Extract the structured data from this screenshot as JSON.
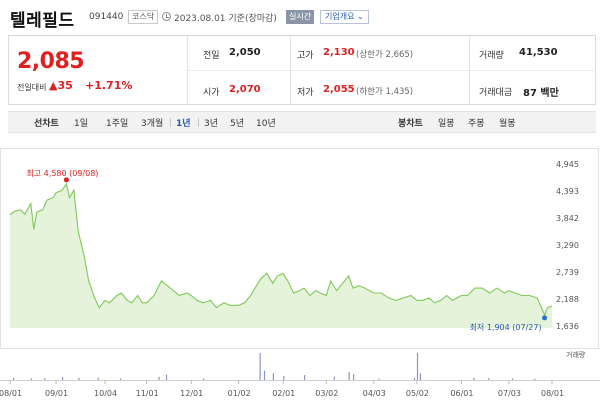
{
  "header": {
    "name": "텔레필드",
    "code": "091440",
    "market": "코스닥",
    "date": "2023.08.01",
    "basis": "기준(장마감)",
    "realtime_label": "실시간",
    "company_label": "기업개요 ⌄"
  },
  "quote": {
    "price": "2,085",
    "change_label": "전일대비",
    "change_arrow": "▲",
    "change": "35",
    "change_pct": "+1.71%",
    "prev_close_label": "전일",
    "prev_close": "2,050",
    "open_label": "시가",
    "open": "2,070",
    "high_label": "고가",
    "high": "2,130",
    "upper_limit_text": "(상한가 2,665)",
    "low_label": "저가",
    "low": "2,055",
    "lower_limit_text": "(하한가 1,435)",
    "volume_label": "거래량",
    "volume": "41,530",
    "amount_label": "거래대금",
    "amount": "87",
    "amount_unit": "백만"
  },
  "tabs": {
    "line_label": "선차트",
    "periods": [
      "1일",
      "1주일",
      "3개월",
      "1년",
      "3년",
      "5년",
      "10년"
    ],
    "active_period": "1년",
    "candle_label": "봉차트",
    "candle_types": [
      "일봉",
      "주봉",
      "월봉"
    ]
  },
  "colors": {
    "up": "#e02020",
    "down": "#2a5bb3",
    "line": "#7fc85a",
    "area": "#e4f3da",
    "volume": "#8a94c4"
  },
  "chart_data": {
    "type": "area",
    "y_ticks": [
      "4,945",
      "4,393",
      "3,842",
      "3,290",
      "2,739",
      "2,188",
      "1,636"
    ],
    "ylim": [
      1636,
      4945
    ],
    "x_ticks": [
      "08/01",
      "09/01",
      "10/04",
      "11/01",
      "12/01",
      "01/02",
      "02/01",
      "03/02",
      "04/03",
      "05/02",
      "06/01",
      "07/03",
      "08/01"
    ],
    "x_dates": [
      "2022-08-01",
      "2022-09-01",
      "2022-10-04",
      "2022-11-01",
      "2022-12-01",
      "2023-01-02",
      "2023-02-01",
      "2023-03-02",
      "2023-04-03",
      "2023-05-02",
      "2023-06-01",
      "2023-07-03",
      "2023-08-01"
    ],
    "annotation_high": "최고 4,580 (09/08)",
    "annotation_low": "최저 1,904 (07/27)",
    "volume_legend": "거래량",
    "series": [
      {
        "points": [
          [
            "2022-08-01",
            3950
          ],
          [
            "2022-08-04",
            4020
          ],
          [
            "2022-08-08",
            4050
          ],
          [
            "2022-08-11",
            3960
          ],
          [
            "2022-08-15",
            4180
          ],
          [
            "2022-08-17",
            3650
          ],
          [
            "2022-08-19",
            4000
          ],
          [
            "2022-08-23",
            4050
          ],
          [
            "2022-08-26",
            4250
          ],
          [
            "2022-08-30",
            4300
          ],
          [
            "2022-09-01",
            4400
          ],
          [
            "2022-09-05",
            4450
          ],
          [
            "2022-09-08",
            4580
          ],
          [
            "2022-09-10",
            4300
          ],
          [
            "2022-09-13",
            4450
          ],
          [
            "2022-09-16",
            3600
          ],
          [
            "2022-09-20",
            3100
          ],
          [
            "2022-09-23",
            2600
          ],
          [
            "2022-09-27",
            2250
          ],
          [
            "2022-09-30",
            2050
          ],
          [
            "2022-10-04",
            2200
          ],
          [
            "2022-10-07",
            2150
          ],
          [
            "2022-10-12",
            2300
          ],
          [
            "2022-10-15",
            2350
          ],
          [
            "2022-10-19",
            2200
          ],
          [
            "2022-10-22",
            2150
          ],
          [
            "2022-10-26",
            2300
          ],
          [
            "2022-10-29",
            2150
          ],
          [
            "2022-11-01",
            2150
          ],
          [
            "2022-11-06",
            2300
          ],
          [
            "2022-11-11",
            2600
          ],
          [
            "2022-11-15",
            2500
          ],
          [
            "2022-11-19",
            2400
          ],
          [
            "2022-11-23",
            2300
          ],
          [
            "2022-11-28",
            2350
          ],
          [
            "2022-12-01",
            2300
          ],
          [
            "2022-12-05",
            2200
          ],
          [
            "2022-12-09",
            2150
          ],
          [
            "2022-12-14",
            2200
          ],
          [
            "2022-12-18",
            2050
          ],
          [
            "2022-12-23",
            2150
          ],
          [
            "2022-12-27",
            2100
          ],
          [
            "2023-01-02",
            2100
          ],
          [
            "2023-01-06",
            2150
          ],
          [
            "2023-01-10",
            2300
          ],
          [
            "2023-01-13",
            2450
          ],
          [
            "2023-01-17",
            2650
          ],
          [
            "2023-01-21",
            2750
          ],
          [
            "2023-01-25",
            2550
          ],
          [
            "2023-01-28",
            2700
          ],
          [
            "2023-02-01",
            2750
          ],
          [
            "2023-02-04",
            2600
          ],
          [
            "2023-02-08",
            2350
          ],
          [
            "2023-02-12",
            2400
          ],
          [
            "2023-02-15",
            2450
          ],
          [
            "2023-02-19",
            2300
          ],
          [
            "2023-02-23",
            2400
          ],
          [
            "2023-02-26",
            2350
          ],
          [
            "2023-03-02",
            2300
          ],
          [
            "2023-03-05",
            2600
          ],
          [
            "2023-03-09",
            2400
          ],
          [
            "2023-03-13",
            2550
          ],
          [
            "2023-03-17",
            2700
          ],
          [
            "2023-03-20",
            2450
          ],
          [
            "2023-03-24",
            2500
          ],
          [
            "2023-03-28",
            2450
          ],
          [
            "2023-04-03",
            2350
          ],
          [
            "2023-04-08",
            2350
          ],
          [
            "2023-04-13",
            2250
          ],
          [
            "2023-04-18",
            2200
          ],
          [
            "2023-04-23",
            2250
          ],
          [
            "2023-04-28",
            2300
          ],
          [
            "2023-05-02",
            2200
          ],
          [
            "2023-05-06",
            2200
          ],
          [
            "2023-05-10",
            2250
          ],
          [
            "2023-05-14",
            2150
          ],
          [
            "2023-05-18",
            2200
          ],
          [
            "2023-05-22",
            2300
          ],
          [
            "2023-05-26",
            2200
          ],
          [
            "2023-06-01",
            2300
          ],
          [
            "2023-06-05",
            2300
          ],
          [
            "2023-06-10",
            2450
          ],
          [
            "2023-06-15",
            2450
          ],
          [
            "2023-06-20",
            2350
          ],
          [
            "2023-06-25",
            2450
          ],
          [
            "2023-06-30",
            2350
          ],
          [
            "2023-07-03",
            2400
          ],
          [
            "2023-07-07",
            2350
          ],
          [
            "2023-07-12",
            2300
          ],
          [
            "2023-07-17",
            2300
          ],
          [
            "2023-07-22",
            2250
          ],
          [
            "2023-07-27",
            1904
          ],
          [
            "2023-07-29",
            2050
          ],
          [
            "2023-08-01",
            2085
          ]
        ]
      }
    ],
    "volume_bars": [
      [
        "2022-08-03",
        0.08
      ],
      [
        "2022-08-15",
        0.06
      ],
      [
        "2022-08-24",
        0.07
      ],
      [
        "2022-09-05",
        0.1
      ],
      [
        "2022-09-16",
        0.08
      ],
      [
        "2022-09-29",
        0.09
      ],
      [
        "2022-10-14",
        0.06
      ],
      [
        "2022-11-09",
        0.12
      ],
      [
        "2022-11-14",
        0.2
      ],
      [
        "2022-12-09",
        0.06
      ],
      [
        "2023-01-16",
        1.0
      ],
      [
        "2023-01-19",
        0.35
      ],
      [
        "2023-01-25",
        0.25
      ],
      [
        "2023-02-01",
        0.15
      ],
      [
        "2023-02-15",
        0.18
      ],
      [
        "2023-03-07",
        0.12
      ],
      [
        "2023-03-17",
        0.3
      ],
      [
        "2023-03-20",
        0.22
      ],
      [
        "2023-04-06",
        0.05
      ],
      [
        "2023-04-30",
        0.08
      ],
      [
        "2023-05-02",
        1.0
      ],
      [
        "2023-05-04",
        0.25
      ],
      [
        "2023-06-09",
        0.08
      ],
      [
        "2023-06-19",
        0.07
      ],
      [
        "2023-07-05",
        0.06
      ],
      [
        "2023-07-20",
        0.05
      ]
    ]
  }
}
